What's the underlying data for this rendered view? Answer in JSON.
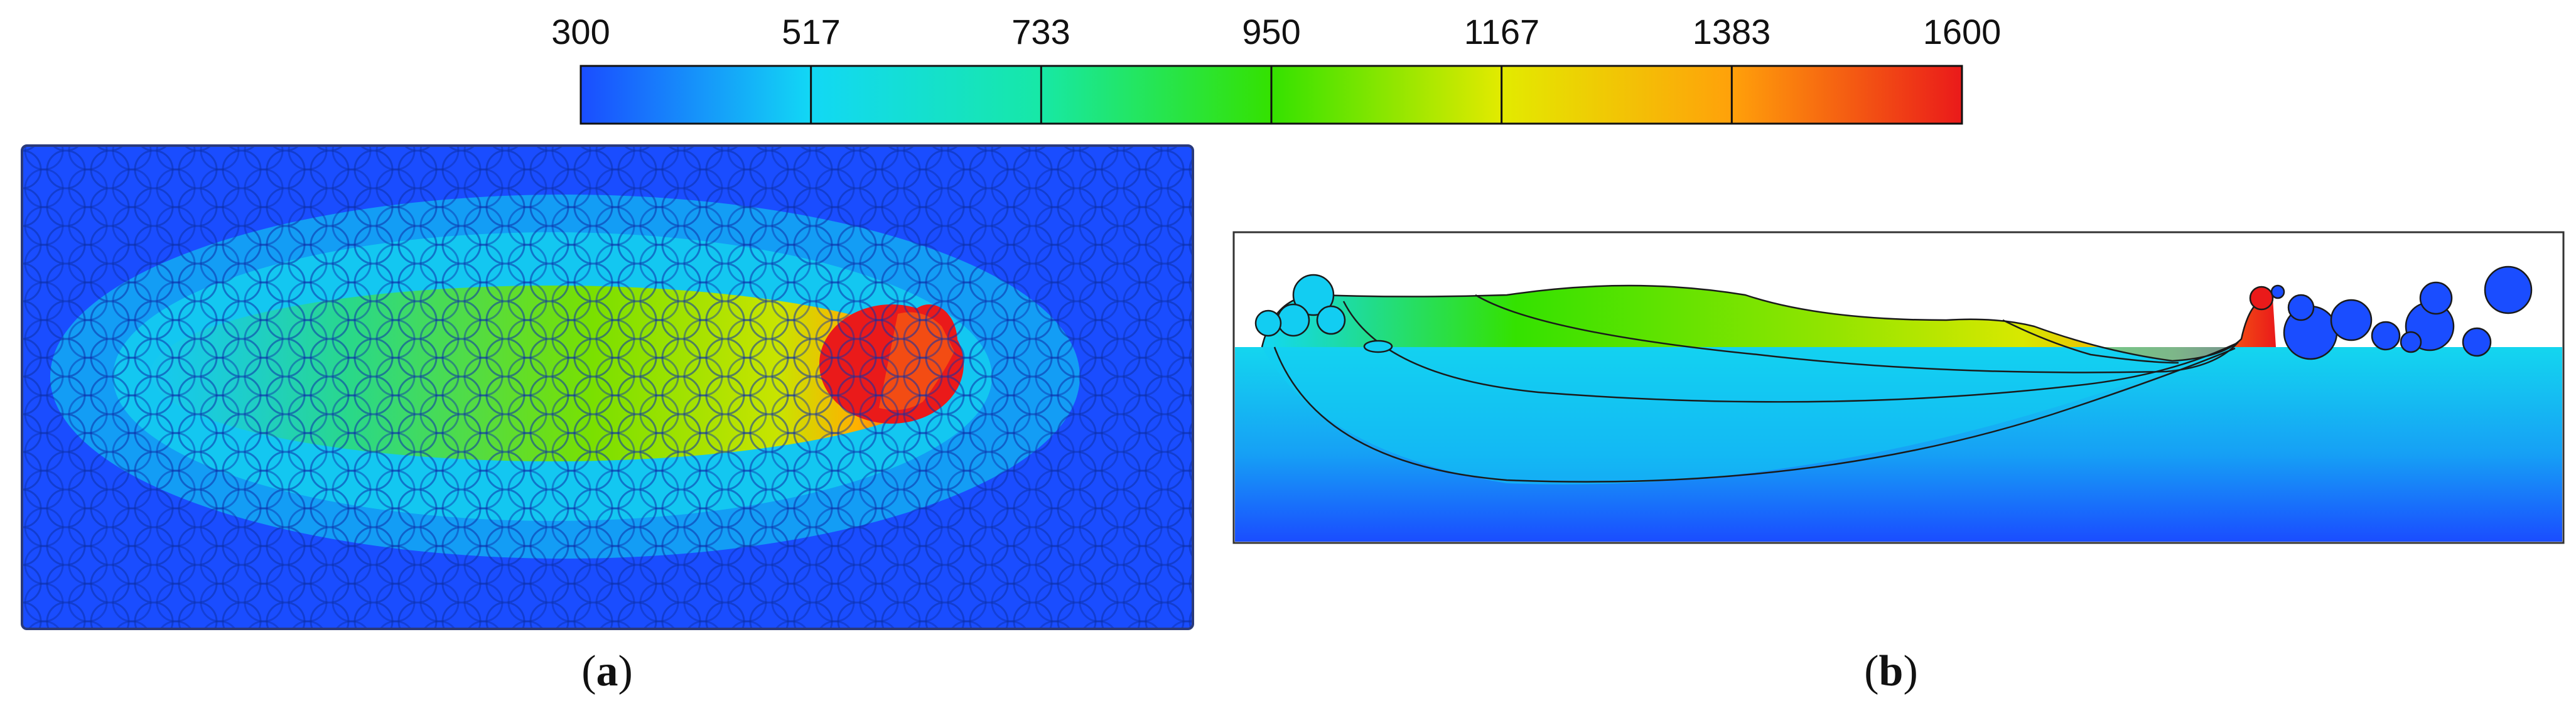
{
  "colorbar": {
    "tick_values": [
      "300",
      "517",
      "733",
      "950",
      "1167",
      "1383",
      "1600"
    ],
    "colors": [
      "#1a4dff",
      "#12d8f5",
      "#17e8a6",
      "#34e200",
      "#e3ea00",
      "#ffa10a",
      "#ea1a1a"
    ]
  },
  "panels": {
    "a": {
      "label_open": "(",
      "label_letter": "a",
      "label_close": ")"
    },
    "b": {
      "label_open": "(",
      "label_letter": "b",
      "label_close": ")"
    }
  }
}
